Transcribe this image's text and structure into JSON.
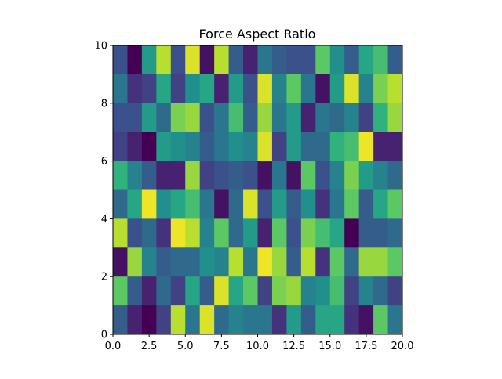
{
  "chart_data": {
    "type": "heatmap",
    "title": "Force Aspect Ratio",
    "xlabel": "",
    "ylabel": "",
    "xlim": [
      0,
      20
    ],
    "ylim": [
      0,
      10
    ],
    "colormap": "viridis",
    "grid": false,
    "x_ticks": [
      "0.0",
      "2.5",
      "5.0",
      "7.5",
      "10.0",
      "12.5",
      "15.0",
      "17.5",
      "20.0"
    ],
    "y_ticks": [
      "0",
      "2",
      "4",
      "6",
      "8",
      "10"
    ],
    "rows": [
      [
        0.25,
        0.0,
        0.55,
        0.9,
        0.25,
        0.95,
        0.05,
        0.9,
        0.3,
        0.1,
        0.4,
        0.3,
        0.25,
        0.25,
        0.75,
        0.5,
        0.3,
        0.6,
        0.7,
        0.3
      ],
      [
        0.4,
        0.15,
        0.2,
        0.6,
        0.2,
        0.5,
        0.6,
        0.1,
        0.55,
        0.25,
        0.95,
        0.45,
        0.75,
        0.4,
        0.05,
        0.55,
        0.95,
        0.45,
        0.8,
        0.9
      ],
      [
        0.25,
        0.25,
        0.55,
        0.35,
        0.8,
        0.85,
        0.25,
        0.4,
        0.7,
        0.3,
        0.85,
        0.4,
        0.55,
        0.1,
        0.4,
        0.35,
        0.45,
        0.2,
        0.65,
        0.85
      ],
      [
        0.2,
        0.1,
        0.0,
        0.55,
        0.5,
        0.45,
        0.3,
        0.4,
        0.5,
        0.45,
        0.95,
        0.2,
        0.55,
        0.35,
        0.35,
        0.65,
        0.7,
        0.98,
        0.1,
        0.1
      ],
      [
        0.65,
        0.45,
        0.3,
        0.1,
        0.1,
        0.85,
        0.2,
        0.25,
        0.3,
        0.25,
        0.05,
        0.4,
        0.05,
        0.75,
        0.25,
        0.45,
        0.8,
        0.55,
        0.45,
        0.35
      ],
      [
        0.35,
        0.6,
        0.98,
        0.5,
        0.6,
        0.7,
        0.4,
        0.05,
        0.35,
        0.95,
        0.25,
        0.55,
        0.3,
        0.5,
        0.15,
        0.4,
        0.75,
        0.3,
        0.6,
        0.75
      ],
      [
        0.9,
        0.25,
        0.35,
        0.15,
        0.98,
        0.9,
        0.45,
        0.75,
        0.35,
        0.55,
        0.1,
        0.75,
        0.25,
        0.8,
        0.7,
        0.6,
        0.0,
        0.3,
        0.3,
        0.35
      ],
      [
        0.05,
        0.85,
        0.45,
        0.3,
        0.35,
        0.35,
        0.5,
        0.45,
        0.9,
        0.4,
        0.98,
        0.85,
        0.3,
        0.9,
        0.15,
        0.75,
        0.35,
        0.85,
        0.85,
        0.75
      ],
      [
        0.75,
        0.3,
        0.1,
        0.35,
        0.2,
        0.6,
        0.3,
        0.95,
        0.6,
        0.75,
        0.2,
        0.8,
        0.85,
        0.45,
        0.5,
        0.7,
        0.2,
        0.45,
        0.35,
        0.2
      ],
      [
        0.3,
        0.1,
        0.0,
        0.2,
        0.9,
        0.4,
        0.95,
        0.35,
        0.45,
        0.4,
        0.4,
        0.15,
        0.55,
        0.3,
        0.6,
        0.6,
        0.15,
        0.05,
        0.75,
        0.4
      ]
    ],
    "rows_order": "top-to-bottom"
  }
}
